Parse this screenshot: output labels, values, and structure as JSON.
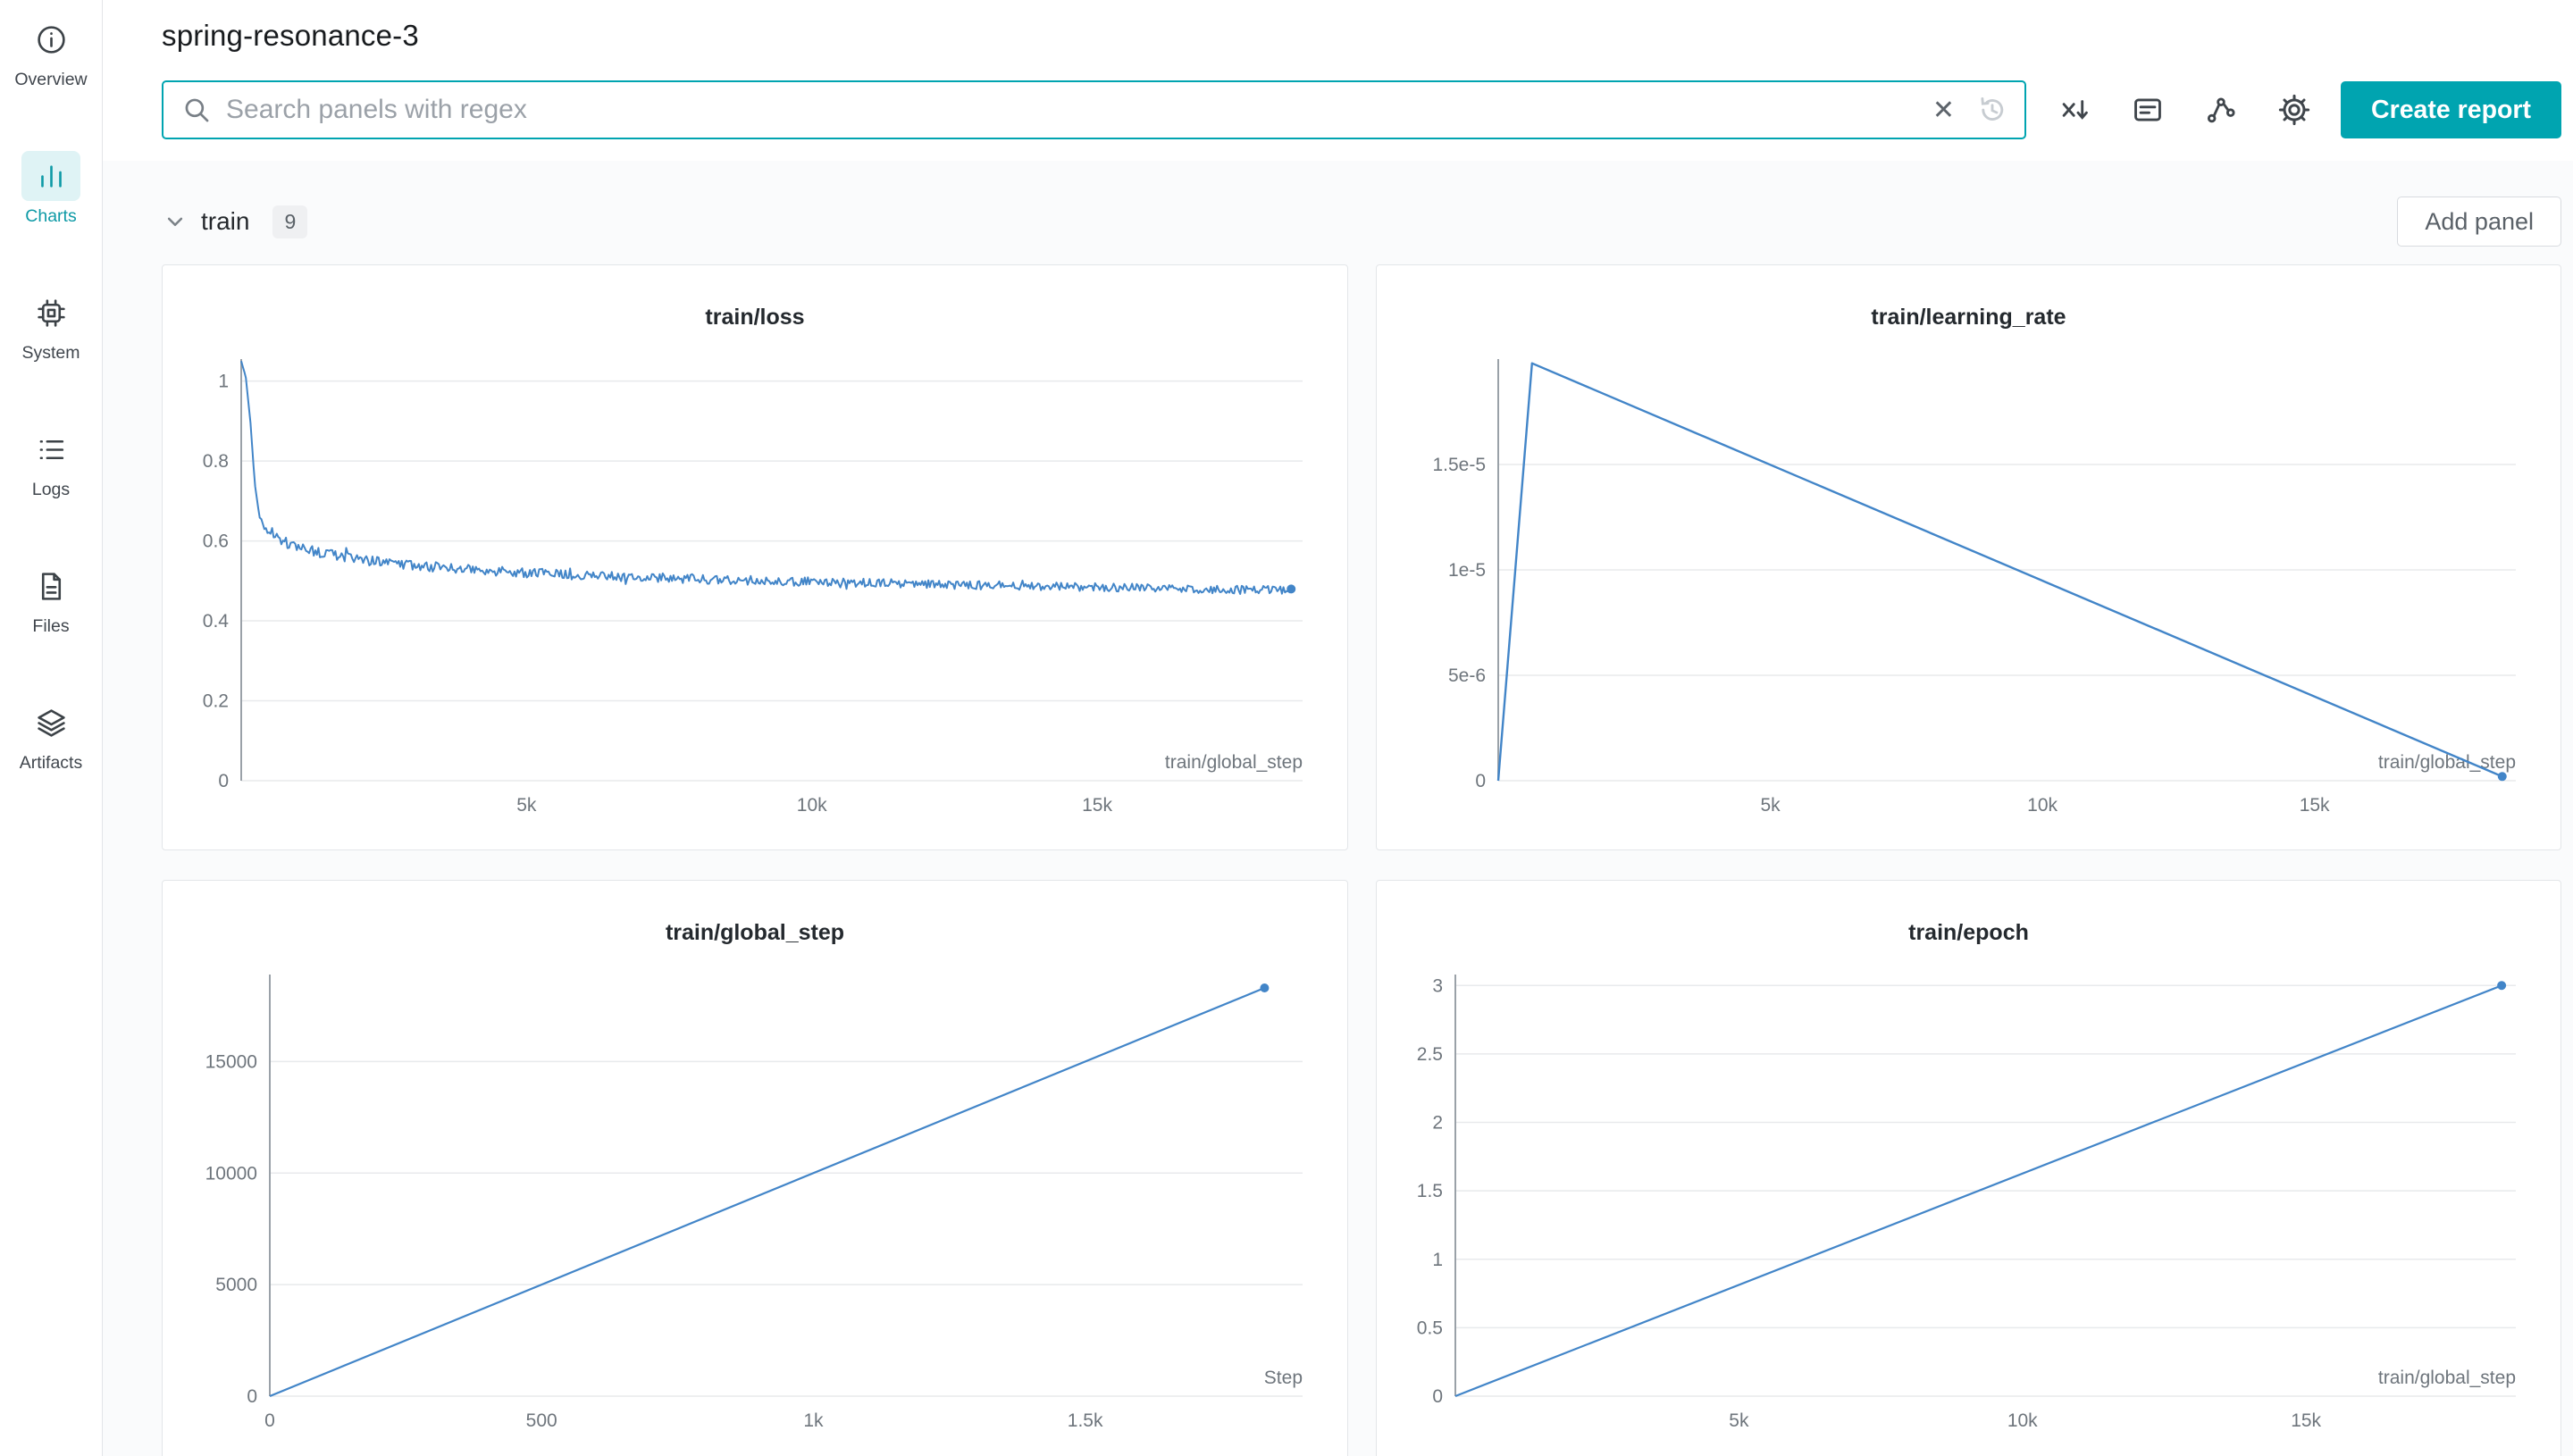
{
  "header": {
    "title": "spring-resonance-3"
  },
  "sidebar": {
    "items": [
      {
        "label": "Overview",
        "icon": "info-icon",
        "active": false
      },
      {
        "label": "Charts",
        "icon": "bar-chart-icon",
        "active": true
      },
      {
        "label": "System",
        "icon": "chip-icon",
        "active": false
      },
      {
        "label": "Logs",
        "icon": "list-icon",
        "active": false
      },
      {
        "label": "Files",
        "icon": "document-icon",
        "active": false
      },
      {
        "label": "Artifacts",
        "icon": "layers-icon",
        "active": false
      }
    ]
  },
  "toolbar": {
    "search_placeholder": "Search panels with regex",
    "clear_glyph": "✕",
    "create_report_label": "Create report"
  },
  "section": {
    "title": "train",
    "count": "9",
    "add_panel_label": "Add panel"
  },
  "colors": {
    "accent_teal": "#00A4B0",
    "sidebar_active_teal": "#0E9AA6",
    "sidebar_active_bg": "#DFF3F5",
    "chart_line": "#4285C8",
    "grid_line": "#E8EAEC",
    "axis_line": "#9AA1A8",
    "tick_text": "#6E757C"
  },
  "chart_data": [
    {
      "type": "line",
      "title": "train/loss",
      "xlabel": "train/global_step",
      "xlim": [
        0,
        18600
      ],
      "ylim": [
        0,
        1.055
      ],
      "x_ticks": [
        {
          "v": 5000,
          "label": "5k"
        },
        {
          "v": 10000,
          "label": "10k"
        },
        {
          "v": 15000,
          "label": "15k"
        }
      ],
      "y_ticks": [
        {
          "v": 0,
          "label": "0"
        },
        {
          "v": 0.2,
          "label": "0.2"
        },
        {
          "v": 0.4,
          "label": "0.4"
        },
        {
          "v": 0.6,
          "label": "0.6"
        },
        {
          "v": 0.8,
          "label": "0.8"
        },
        {
          "v": 1,
          "label": "1"
        }
      ],
      "points": [
        [
          0,
          1.05
        ],
        [
          80,
          1.01
        ],
        [
          160,
          0.9
        ],
        [
          240,
          0.74
        ],
        [
          320,
          0.66
        ],
        [
          420,
          0.63
        ],
        [
          550,
          0.62
        ],
        [
          700,
          0.6
        ],
        [
          900,
          0.59
        ],
        [
          1200,
          0.577
        ],
        [
          1600,
          0.565
        ],
        [
          2000,
          0.555
        ],
        [
          2600,
          0.545
        ],
        [
          3200,
          0.537
        ],
        [
          4000,
          0.528
        ],
        [
          5000,
          0.52
        ],
        [
          6000,
          0.514
        ],
        [
          7000,
          0.509
        ],
        [
          8000,
          0.505
        ],
        [
          9000,
          0.501
        ],
        [
          10000,
          0.498
        ],
        [
          11000,
          0.495
        ],
        [
          12000,
          0.492
        ],
        [
          13000,
          0.489
        ],
        [
          14000,
          0.487
        ],
        [
          15000,
          0.484
        ],
        [
          16000,
          0.482
        ],
        [
          17000,
          0.479
        ],
        [
          18400,
          0.477
        ]
      ],
      "noise": {
        "amp": 0.013,
        "start": 300,
        "samples": 680
      },
      "stroke": 2,
      "end_dot": true
    },
    {
      "type": "line",
      "title": "train/learning_rate",
      "xlabel": "train/global_step",
      "xlim": [
        0,
        18700
      ],
      "ylim": [
        0,
        2e-05
      ],
      "x_ticks": [
        {
          "v": 5000,
          "label": "5k"
        },
        {
          "v": 10000,
          "label": "10k"
        },
        {
          "v": 15000,
          "label": "15k"
        }
      ],
      "y_ticks": [
        {
          "v": 0,
          "label": "0"
        },
        {
          "v": 5e-06,
          "label": "5e-6"
        },
        {
          "v": 1e-05,
          "label": "1e-5"
        },
        {
          "v": 1.5e-05,
          "label": "1.5e-5"
        }
      ],
      "points": [
        [
          0,
          0
        ],
        [
          620,
          1.98e-05
        ],
        [
          18450,
          2e-07
        ]
      ],
      "stroke": 2.4,
      "end_dot": true
    },
    {
      "type": "line",
      "title": "train/global_step",
      "xlabel": "Step",
      "xlim": [
        0,
        1900
      ],
      "ylim": [
        0,
        18900
      ],
      "x_ticks": [
        {
          "v": 0,
          "label": "0"
        },
        {
          "v": 500,
          "label": "500"
        },
        {
          "v": 1000,
          "label": "1k"
        },
        {
          "v": 1500,
          "label": "1.5k"
        }
      ],
      "y_ticks": [
        {
          "v": 0,
          "label": "0"
        },
        {
          "v": 5000,
          "label": "5000"
        },
        {
          "v": 10000,
          "label": "10000"
        },
        {
          "v": 15000,
          "label": "15000"
        }
      ],
      "points": [
        [
          0,
          0
        ],
        [
          1830,
          18300
        ]
      ],
      "stroke": 2.2,
      "end_dot": true
    },
    {
      "type": "line",
      "title": "train/epoch",
      "xlabel": "train/global_step",
      "xlim": [
        0,
        18700
      ],
      "ylim": [
        0,
        3.08
      ],
      "x_ticks": [
        {
          "v": 5000,
          "label": "5k"
        },
        {
          "v": 10000,
          "label": "10k"
        },
        {
          "v": 15000,
          "label": "15k"
        }
      ],
      "y_ticks": [
        {
          "v": 0,
          "label": "0"
        },
        {
          "v": 0.5,
          "label": "0.5"
        },
        {
          "v": 1,
          "label": "1"
        },
        {
          "v": 1.5,
          "label": "1.5"
        },
        {
          "v": 2,
          "label": "2"
        },
        {
          "v": 2.5,
          "label": "2.5"
        },
        {
          "v": 3,
          "label": "3"
        }
      ],
      "points": [
        [
          0,
          0
        ],
        [
          18450,
          3.0
        ]
      ],
      "stroke": 2.2,
      "end_dot": true
    }
  ]
}
